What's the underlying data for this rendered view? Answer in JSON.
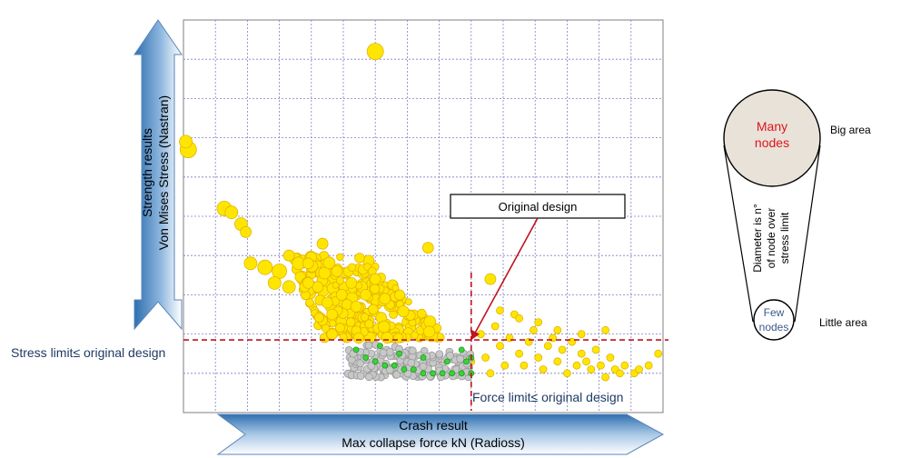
{
  "chart_data": {
    "type": "scatter",
    "title": "",
    "grid": true,
    "y_axis_arrow": {
      "line1": "Strength results",
      "line2": "Von Mises Stress (Nastran)"
    },
    "x_axis_arrow": {
      "line1": "Crash result",
      "line2": "Max collapse force kN (Radioss)"
    },
    "stress_limit_label": "Stress limit≤ original design",
    "force_limit_label": "Force limit≤ original design",
    "original_design_label": "Original design",
    "legend": {
      "rotated_text_line1": "Diameter is n°",
      "rotated_text_line2": "of node over",
      "rotated_text_line3": "stress limit",
      "many_line1": "Many",
      "many_line2": "nodes",
      "few_line1": "Few",
      "few_line2": "nodes",
      "big_area": "Big area",
      "little_area": "Little area"
    },
    "colors": {
      "yellow_fill": "#FFE600",
      "yellow_stroke": "#E3B200",
      "gray_fill": "#C8C8C8",
      "gray_stroke": "#9A9A9A",
      "green": "#3CD23C",
      "limit_line": "#C0141E",
      "axis_arrow_dark": "#2E6FB0",
      "legend_big_fill": "#E8E2D8",
      "legend_many_text": "#E0141E",
      "legend_few_text": "#3A5A8C",
      "limit_label_text": "#1F3A64"
    },
    "xlim": [
      0,
      100
    ],
    "ylim": [
      0,
      100
    ],
    "stress_limit_y": 18.5,
    "force_limit_x": 60,
    "original_design_point": {
      "x": 60,
      "y": 18.5
    },
    "big_points": [
      {
        "x": 40,
        "y": 92,
        "r": 9
      },
      {
        "x": 1,
        "y": 67,
        "r": 9
      },
      {
        "x": 0.5,
        "y": 69,
        "r": 7
      },
      {
        "x": 8.5,
        "y": 52,
        "r": 8
      },
      {
        "x": 10,
        "y": 51,
        "r": 7
      },
      {
        "x": 12,
        "y": 48,
        "r": 7
      },
      {
        "x": 13,
        "y": 46,
        "r": 6
      },
      {
        "x": 14,
        "y": 38,
        "r": 7
      },
      {
        "x": 17,
        "y": 37,
        "r": 8
      },
      {
        "x": 20,
        "y": 36,
        "r": 8
      },
      {
        "x": 19,
        "y": 33,
        "r": 7
      },
      {
        "x": 22,
        "y": 32,
        "r": 7
      },
      {
        "x": 24,
        "y": 38,
        "r": 7
      },
      {
        "x": 22,
        "y": 40,
        "r": 6
      },
      {
        "x": 26,
        "y": 38,
        "r": 6
      },
      {
        "x": 29,
        "y": 43,
        "r": 6
      },
      {
        "x": 51,
        "y": 42,
        "r": 6
      },
      {
        "x": 30,
        "y": 28,
        "r": 6
      },
      {
        "x": 28,
        "y": 32,
        "r": 6
      },
      {
        "x": 32,
        "y": 36,
        "r": 6
      },
      {
        "x": 33,
        "y": 30,
        "r": 6
      },
      {
        "x": 35,
        "y": 33,
        "r": 6
      },
      {
        "x": 36,
        "y": 27,
        "r": 6
      },
      {
        "x": 31,
        "y": 25,
        "r": 6
      },
      {
        "x": 38,
        "y": 30,
        "r": 6
      },
      {
        "x": 40,
        "y": 34,
        "r": 6
      },
      {
        "x": 42,
        "y": 29,
        "r": 6
      },
      {
        "x": 26,
        "y": 33,
        "r": 6
      },
      {
        "x": 64,
        "y": 34,
        "r": 6
      }
    ],
    "yellow_cluster": {
      "n": 290,
      "x_center": 42,
      "x_spread": 26,
      "y_top": 40,
      "y_bottom": 19,
      "r_min": 3.5,
      "r_max": 6.5
    },
    "yellow_right_tail": [
      {
        "x": 62,
        "y": 20,
        "r": 4
      },
      {
        "x": 63,
        "y": 14,
        "r": 4
      },
      {
        "x": 65,
        "y": 22,
        "r": 4
      },
      {
        "x": 66,
        "y": 17,
        "r": 4
      },
      {
        "x": 67,
        "y": 12,
        "r": 4
      },
      {
        "x": 68,
        "y": 19,
        "r": 4
      },
      {
        "x": 69,
        "y": 25,
        "r": 4
      },
      {
        "x": 70,
        "y": 15,
        "r": 4
      },
      {
        "x": 71,
        "y": 12,
        "r": 4
      },
      {
        "x": 72,
        "y": 18,
        "r": 4
      },
      {
        "x": 73,
        "y": 21,
        "r": 4
      },
      {
        "x": 74,
        "y": 14,
        "r": 4
      },
      {
        "x": 75,
        "y": 11,
        "r": 4
      },
      {
        "x": 76,
        "y": 17,
        "r": 4
      },
      {
        "x": 77,
        "y": 19,
        "r": 4
      },
      {
        "x": 78,
        "y": 13,
        "r": 4
      },
      {
        "x": 79,
        "y": 16,
        "r": 4
      },
      {
        "x": 80,
        "y": 10,
        "r": 4
      },
      {
        "x": 81,
        "y": 18,
        "r": 4
      },
      {
        "x": 82,
        "y": 12,
        "r": 4
      },
      {
        "x": 83,
        "y": 15,
        "r": 4
      },
      {
        "x": 84,
        "y": 13,
        "r": 4
      },
      {
        "x": 85,
        "y": 11,
        "r": 4
      },
      {
        "x": 86,
        "y": 16,
        "r": 4
      },
      {
        "x": 87,
        "y": 12,
        "r": 4
      },
      {
        "x": 88,
        "y": 9,
        "r": 4
      },
      {
        "x": 89,
        "y": 14,
        "r": 4
      },
      {
        "x": 90,
        "y": 11,
        "r": 4
      },
      {
        "x": 91,
        "y": 10,
        "r": 4
      },
      {
        "x": 92,
        "y": 12,
        "r": 4
      },
      {
        "x": 94,
        "y": 10,
        "r": 4
      },
      {
        "x": 95,
        "y": 11,
        "r": 4
      },
      {
        "x": 97,
        "y": 12,
        "r": 4
      },
      {
        "x": 99,
        "y": 15,
        "r": 4
      },
      {
        "x": 78,
        "y": 21,
        "r": 4
      },
      {
        "x": 83,
        "y": 20,
        "r": 4
      },
      {
        "x": 70,
        "y": 24,
        "r": 4
      },
      {
        "x": 74,
        "y": 23,
        "r": 4
      },
      {
        "x": 66,
        "y": 26,
        "r": 4
      },
      {
        "x": 88,
        "y": 21,
        "r": 4
      },
      {
        "x": 60,
        "y": 13,
        "r": 4
      },
      {
        "x": 64,
        "y": 10,
        "r": 4
      }
    ],
    "gray_cluster": {
      "n": 170,
      "x_min": 34,
      "x_max": 60,
      "y_top": 18,
      "y_bottom": 9,
      "r": 4
    },
    "green_points": [
      {
        "x": 36,
        "y": 16
      },
      {
        "x": 38,
        "y": 14
      },
      {
        "x": 40,
        "y": 13
      },
      {
        "x": 42,
        "y": 12
      },
      {
        "x": 44,
        "y": 12
      },
      {
        "x": 46,
        "y": 11
      },
      {
        "x": 48,
        "y": 11
      },
      {
        "x": 50,
        "y": 10
      },
      {
        "x": 52,
        "y": 10
      },
      {
        "x": 54,
        "y": 10
      },
      {
        "x": 56,
        "y": 10
      },
      {
        "x": 58,
        "y": 10
      },
      {
        "x": 60,
        "y": 10
      },
      {
        "x": 60,
        "y": 14
      },
      {
        "x": 59,
        "y": 13
      },
      {
        "x": 58,
        "y": 16
      },
      {
        "x": 45,
        "y": 15
      },
      {
        "x": 41,
        "y": 17
      },
      {
        "x": 55,
        "y": 13
      },
      {
        "x": 50,
        "y": 14
      }
    ]
  }
}
